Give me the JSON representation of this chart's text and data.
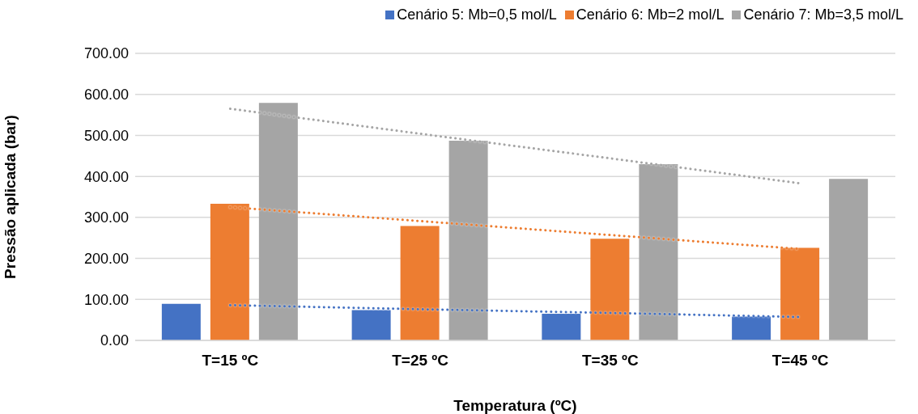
{
  "chart_data": {
    "type": "bar",
    "xlabel": "Temperatura (ºC)",
    "ylabel": "Pressão aplicada (bar)",
    "categories": [
      "T=15 ºC",
      "T=25 ºC",
      "T=35 ºC",
      "T=45 ºC"
    ],
    "series": [
      {
        "name": "Cenário 5: Mb=0,5 mol/L",
        "color": "#4472c4",
        "values": [
          89,
          74,
          65,
          58
        ]
      },
      {
        "name": "Cenário 6: Mb=2 mol/L",
        "color": "#ed7d31",
        "values": [
          333,
          279,
          248,
          226
        ]
      },
      {
        "name": "Cenário 7: Mb=3,5 mol/L",
        "color": "#a5a5a5",
        "values": [
          579,
          487,
          430,
          394
        ]
      },
      {
        "type": "line",
        "line_style": "dotted",
        "color": "#4472c4",
        "values": [
          86,
          76,
          67,
          57
        ]
      },
      {
        "type": "line",
        "line_style": "dotted",
        "color": "#ed7d31",
        "values": [
          325,
          291,
          257,
          223
        ]
      },
      {
        "type": "line",
        "line_style": "dotted",
        "color": "#a5a5a5",
        "values": [
          565,
          504,
          444,
          383
        ]
      }
    ],
    "ylim": [
      0,
      700
    ],
    "yticks": [
      {
        "value": 0,
        "label": "0.00"
      },
      {
        "value": 100,
        "label": "100.00"
      },
      {
        "value": 200,
        "label": "200.00"
      },
      {
        "value": 300,
        "label": "300.00"
      },
      {
        "value": 400,
        "label": "400.00"
      },
      {
        "value": 500,
        "label": "500.00"
      },
      {
        "value": 600,
        "label": "600.00"
      },
      {
        "value": 700,
        "label": "700.00"
      }
    ],
    "grid": "y",
    "legend": "top right"
  }
}
